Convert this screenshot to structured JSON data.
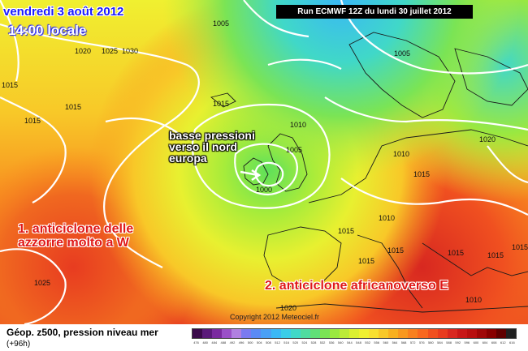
{
  "header": {
    "date": "vendredi 3 août 2012",
    "local_time": "14:00 locale",
    "run_info": "Run ECMWF 12Z du lundi 30 juillet 2012"
  },
  "annotations": {
    "low_pressure": [
      "basse pressioni",
      "verso il nord",
      "europa"
    ],
    "azores_high": [
      "1. anticiclone delle",
      "azzorre molto a W"
    ],
    "african_high": "2. anticiclone africanoverso E"
  },
  "pressure_labels": [
    {
      "text": "1020",
      "name": "isobar-label-1020-a"
    },
    {
      "text": "1025",
      "name": "isobar-label-1025-a"
    },
    {
      "text": "1030",
      "name": "isobar-label-1030"
    },
    {
      "text": "1015",
      "name": "isobar-label-1015-a"
    },
    {
      "text": "1015",
      "name": "isobar-label-1015-b"
    },
    {
      "text": "1015",
      "name": "isobar-label-1015-c"
    },
    {
      "text": "1015",
      "name": "isobar-label-1015-d"
    },
    {
      "text": "1010",
      "name": "isobar-label-1010-a"
    },
    {
      "text": "1005",
      "name": "isobar-label-1005-a"
    },
    {
      "text": "1000",
      "name": "isobar-label-1000"
    },
    {
      "text": "1005",
      "name": "isobar-label-1005-b"
    },
    {
      "text": "1005",
      "name": "isobar-label-1005-c"
    },
    {
      "text": "1010",
      "name": "isobar-label-1010-b"
    },
    {
      "text": "1015",
      "name": "isobar-label-1015-e"
    },
    {
      "text": "1020",
      "name": "isobar-label-1020-b"
    },
    {
      "text": "1010",
      "name": "isobar-label-1010-c"
    },
    {
      "text": "1015",
      "name": "isobar-label-1015-f"
    },
    {
      "text": "1015",
      "name": "isobar-label-1015-g"
    },
    {
      "text": "1015",
      "name": "isobar-label-1015-h"
    },
    {
      "text": "1015",
      "name": "isobar-label-1015-i"
    },
    {
      "text": "1025",
      "name": "isobar-label-1025-b"
    },
    {
      "text": "1020",
      "name": "isobar-label-1020-c"
    },
    {
      "text": "1015",
      "name": "isobar-label-1015-j"
    },
    {
      "text": "1010",
      "name": "isobar-label-1010-d"
    },
    {
      "text": "1015",
      "name": "isobar-label-1015-k"
    }
  ],
  "copyright": "Copyright 2012 Meteociel.fr",
  "footer": {
    "title": "Géop. z500, pression niveau mer",
    "subtitle": "(+96h)"
  },
  "colors": {
    "scale": [
      "#3a0a4a",
      "#5a1a7a",
      "#7a2aa0",
      "#9a50c8",
      "#b080e0",
      "#7a7af0",
      "#5a8af5",
      "#4aa0f5",
      "#3ab8f5",
      "#3acde8",
      "#40d8c8",
      "#50dca0",
      "#60e078",
      "#7ae455",
      "#9ae840",
      "#bcec38",
      "#dcf030",
      "#f0f030",
      "#f8e030",
      "#f8c828",
      "#f8b020",
      "#f89820",
      "#f88020",
      "#f86820",
      "#f05020",
      "#e83c20",
      "#d82820",
      "#c81818",
      "#b81010",
      "#a00808",
      "#880000",
      "#600000",
      "#202020"
    ]
  },
  "scale_labels": [
    "476",
    "480",
    "484",
    "488",
    "492",
    "496",
    "500",
    "504",
    "508",
    "512",
    "516",
    "520",
    "524",
    "528",
    "532",
    "536",
    "540",
    "544",
    "548",
    "552",
    "556",
    "560",
    "564",
    "568",
    "572",
    "576",
    "580",
    "584",
    "588",
    "592",
    "596",
    "600",
    "604",
    "608",
    "612",
    "616"
  ]
}
